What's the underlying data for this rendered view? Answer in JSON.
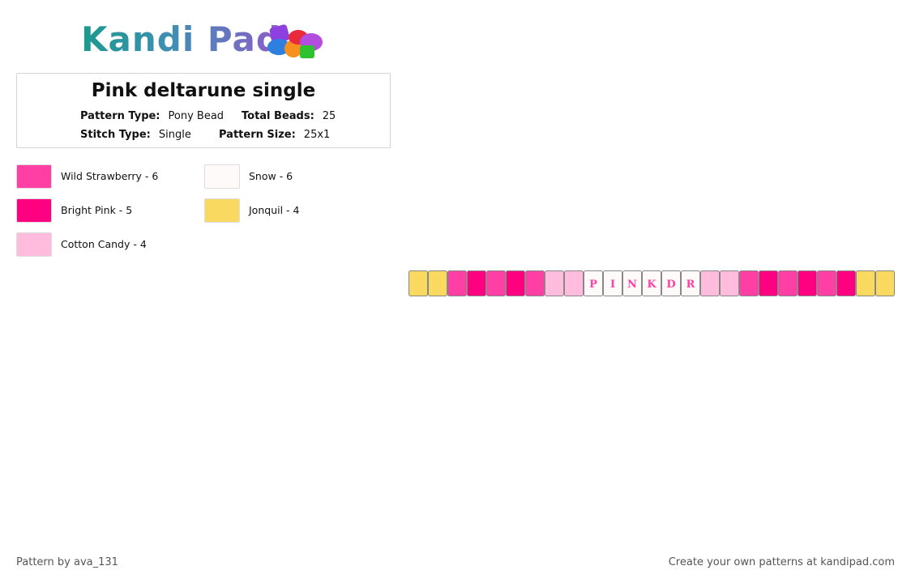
{
  "header": {
    "brand": "Kandi Pad"
  },
  "info": {
    "title": "Pink deltarune single",
    "fields": [
      {
        "label": "Pattern Type:",
        "value": "Pony Bead"
      },
      {
        "label": "Total Beads:",
        "value": "25"
      },
      {
        "label": "Stitch Type:",
        "value": "Single"
      },
      {
        "label": "Pattern Size:",
        "value": "25x1"
      }
    ]
  },
  "legend": [
    {
      "label": "Wild Strawberry - 6",
      "color": "#ff3fa4"
    },
    {
      "label": "Snow - 6",
      "color": "#fffafa"
    },
    {
      "label": "Bright Pink - 5",
      "color": "#ff0080"
    },
    {
      "label": "Jonquil - 4",
      "color": "#f9d95f"
    },
    {
      "label": "Cotton Candy - 4",
      "color": "#ffbcdd"
    }
  ],
  "beads": [
    {
      "color": "#f9d95f"
    },
    {
      "color": "#f9d95f"
    },
    {
      "color": "#ff3fa4"
    },
    {
      "color": "#ff0080"
    },
    {
      "color": "#ff3fa4"
    },
    {
      "color": "#ff0080"
    },
    {
      "color": "#ff3fa4"
    },
    {
      "color": "#ffbcdd"
    },
    {
      "color": "#ffbcdd"
    },
    {
      "color": "#fffafa",
      "letter": "P"
    },
    {
      "color": "#fffafa",
      "letter": "I"
    },
    {
      "color": "#fffafa",
      "letter": "N"
    },
    {
      "color": "#fffafa",
      "letter": "K"
    },
    {
      "color": "#fffafa",
      "letter": "D"
    },
    {
      "color": "#fffafa",
      "letter": "R"
    },
    {
      "color": "#ffbcdd"
    },
    {
      "color": "#ffbcdd"
    },
    {
      "color": "#ff3fa4"
    },
    {
      "color": "#ff0080"
    },
    {
      "color": "#ff3fa4"
    },
    {
      "color": "#ff0080"
    },
    {
      "color": "#ff3fa4"
    },
    {
      "color": "#ff0080"
    },
    {
      "color": "#f9d95f"
    },
    {
      "color": "#f9d95f"
    }
  ],
  "footer": {
    "left": "Pattern by ava_131",
    "right": "Create your own patterns at kandipad.com"
  }
}
